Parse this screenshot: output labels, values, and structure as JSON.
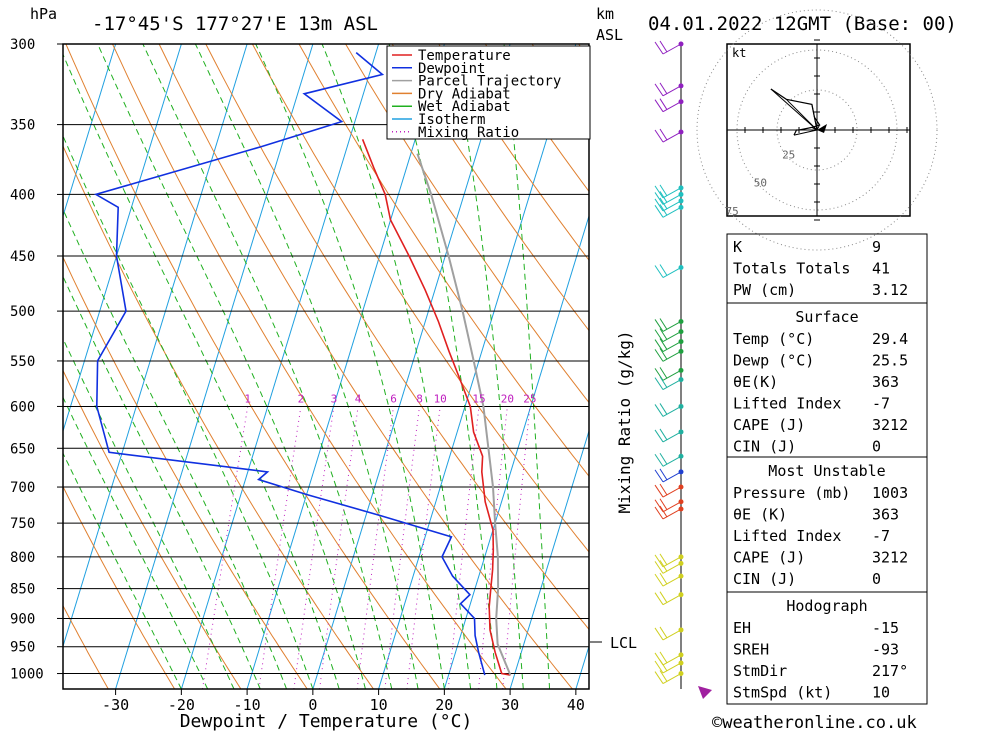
{
  "header": {
    "hpa": "hPa",
    "location": "-17°45'S 177°27'E 13m ASL",
    "km": "km",
    "asl": "ASL",
    "datetime": "04.01.2022 12GMT (Base: 00)"
  },
  "chart_data": {
    "type": "line",
    "title": "-17°45'S 177°27'E 13m ASL",
    "xlabel": "Dewpoint / Temperature (°C)",
    "ylabel": "hPa",
    "right_label": "Mixing Ratio (g/kg)",
    "lcl_label": "LCL",
    "lcl_pressure": 945,
    "xlim": [
      -38,
      42
    ],
    "ylim": [
      1030,
      300
    ],
    "skew": 30,
    "x_ticks": [
      "-30",
      "-20",
      "-10",
      "0",
      "10",
      "20",
      "30",
      "40"
    ],
    "x_tick_values": [
      -30,
      -20,
      -10,
      0,
      10,
      20,
      30,
      40
    ],
    "pressure_levels": [
      300,
      350,
      400,
      450,
      500,
      550,
      600,
      650,
      700,
      750,
      800,
      850,
      900,
      950,
      1000
    ],
    "mixing_ratio_labels": [
      "1",
      "2",
      "3",
      "4",
      "6",
      "8",
      "10",
      "15",
      "20",
      "25"
    ],
    "mixing_ratio_values": [
      1,
      2,
      3,
      4,
      6,
      8,
      10,
      15,
      20,
      25
    ],
    "legend": [
      {
        "name": "Temperature",
        "color": "#e02020"
      },
      {
        "name": "Dewpoint",
        "color": "#1030e0"
      },
      {
        "name": "Parcel Trajectory",
        "color": "#a0a0a0"
      },
      {
        "name": "Dry Adiabat",
        "color": "#e08030"
      },
      {
        "name": "Wet Adiabat",
        "color": "#20b020"
      },
      {
        "name": "Isotherm",
        "color": "#20a0e0"
      },
      {
        "name": "Mixing Ratio",
        "color": "#c020c0"
      }
    ],
    "series": [
      {
        "name": "Temperature",
        "color": "#e02020",
        "points": [
          [
            29.4,
            1003
          ],
          [
            28.0,
            1000
          ],
          [
            26.0,
            960
          ],
          [
            24.2,
            920
          ],
          [
            23.0,
            880
          ],
          [
            22.4,
            850
          ],
          [
            21.8,
            820
          ],
          [
            21.0,
            790
          ],
          [
            20.0,
            760
          ],
          [
            17.5,
            720
          ],
          [
            15.6,
            680
          ],
          [
            15.0,
            660
          ],
          [
            12.5,
            630
          ],
          [
            10.8,
            600
          ],
          [
            8.0,
            570
          ],
          [
            5.0,
            540
          ],
          [
            2.0,
            510
          ],
          [
            -1.5,
            480
          ],
          [
            -5.5,
            450
          ],
          [
            -10.0,
            420
          ],
          [
            -12.0,
            400
          ],
          [
            -15.0,
            380
          ],
          [
            -18.0,
            360
          ]
        ]
      },
      {
        "name": "Dewpoint",
        "color": "#1030e0",
        "points": [
          [
            25.5,
            1003
          ],
          [
            23.5,
            960
          ],
          [
            22.2,
            930
          ],
          [
            21.3,
            900
          ],
          [
            18.5,
            875
          ],
          [
            19.5,
            860
          ],
          [
            16.0,
            830
          ],
          [
            13.5,
            800
          ],
          [
            14.0,
            770
          ],
          [
            2.5,
            740
          ],
          [
            -10.0,
            710
          ],
          [
            -18.0,
            690
          ],
          [
            -17.0,
            680
          ],
          [
            -42.0,
            655
          ],
          [
            -46.0,
            600
          ],
          [
            -48.0,
            550
          ],
          [
            -46.0,
            500
          ],
          [
            -50.0,
            450
          ],
          [
            -52.0,
            410
          ],
          [
            -56.0,
            400
          ],
          [
            -33.0,
            365
          ],
          [
            -22.0,
            348
          ],
          [
            -29.0,
            330
          ],
          [
            -18.0,
            318
          ],
          [
            -23.0,
            305
          ]
        ]
      },
      {
        "name": "Parcel Trajectory",
        "color": "#a0a0a0",
        "points": [
          [
            29.4,
            1003
          ],
          [
            26.0,
            945
          ],
          [
            24.6,
            900
          ],
          [
            23.5,
            850
          ],
          [
            22.0,
            800
          ],
          [
            20.0,
            750
          ],
          [
            18.0,
            700
          ],
          [
            15.5,
            650
          ],
          [
            12.8,
            600
          ],
          [
            9.2,
            550
          ],
          [
            5.2,
            500
          ],
          [
            0.5,
            450
          ],
          [
            -5.0,
            400
          ],
          [
            -9.0,
            370
          ]
        ]
      }
    ],
    "hodograph": {
      "unit": "kt",
      "ring_labels": [
        "25",
        "50",
        "75"
      ],
      "vectors": [
        [
          -9.0,
          -2.0
        ],
        [
          -8.0,
          0.0
        ],
        [
          -7.0,
          0.0
        ],
        [
          -2.0,
          1.0
        ],
        [
          1.0,
          2.0
        ],
        [
          -1.0,
          5.0
        ],
        [
          -2.0,
          10.0
        ],
        [
          -12.0,
          12.0
        ],
        [
          -18.0,
          16.0
        ]
      ]
    },
    "wind_barb_pressures": [
      300,
      325,
      335,
      355,
      395,
      400,
      405,
      410,
      460,
      510,
      520,
      530,
      540,
      560,
      570,
      600,
      630,
      660,
      680,
      700,
      720,
      730,
      800,
      810,
      830,
      860,
      920,
      965,
      980,
      1000
    ]
  },
  "indices": {
    "general": [
      {
        "label": "K",
        "value": "9"
      },
      {
        "label": "Totals Totals",
        "value": "41"
      },
      {
        "label": "PW (cm)",
        "value": "3.12"
      }
    ],
    "surface_title": "Surface",
    "surface": [
      {
        "label": "Temp (°C)",
        "value": "29.4"
      },
      {
        "label": "Dewp (°C)",
        "value": "25.5"
      },
      {
        "label": "θE(K)",
        "value": "363"
      },
      {
        "label": "Lifted Index",
        "value": "-7"
      },
      {
        "label": "CAPE (J)",
        "value": "3212"
      },
      {
        "label": "CIN (J)",
        "value": "0"
      }
    ],
    "unstable_title": "Most Unstable",
    "unstable": [
      {
        "label": "Pressure (mb)",
        "value": "1003"
      },
      {
        "label": "θE (K)",
        "value": "363"
      },
      {
        "label": "Lifted Index",
        "value": "-7"
      },
      {
        "label": "CAPE (J)",
        "value": "3212"
      },
      {
        "label": "CIN (J)",
        "value": "0"
      }
    ],
    "hodo_title": "Hodograph",
    "hodo": [
      {
        "label": "EH",
        "value": "-15"
      },
      {
        "label": "SREH",
        "value": "-93"
      },
      {
        "label": "StmDir",
        "value": "217°"
      },
      {
        "label": "StmSpd (kt)",
        "value": "10"
      }
    ]
  },
  "footer": {
    "copyright": "©weatheronline.co.uk"
  }
}
